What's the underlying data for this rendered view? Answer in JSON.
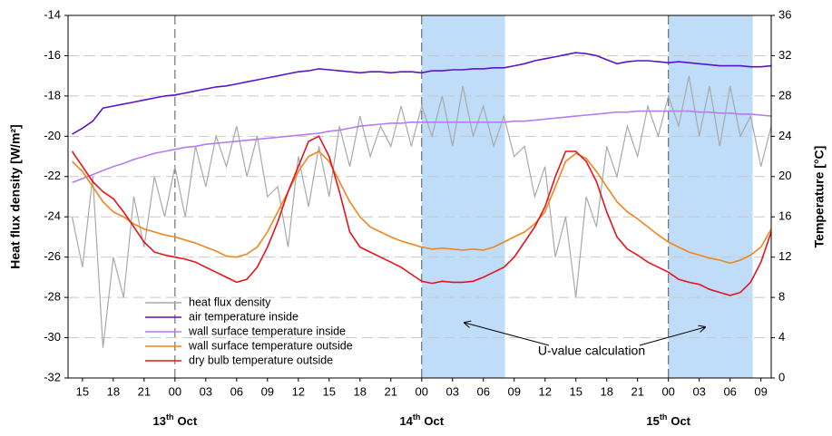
{
  "chart_data": {
    "type": "line",
    "y_label": "Heat flux density [W/m²]",
    "y2_label": "Temperature [°C]",
    "x": [
      14,
      15,
      16,
      17,
      18,
      19,
      20,
      21,
      22,
      23,
      24,
      25,
      26,
      27,
      28,
      29,
      30,
      31,
      32,
      33,
      34,
      35,
      36,
      37,
      38,
      39,
      40,
      41,
      42,
      43,
      44,
      45,
      46,
      47,
      48,
      49,
      50,
      51,
      52,
      53,
      54,
      55,
      56,
      57,
      58,
      59,
      60,
      61,
      62,
      63,
      64,
      65,
      66,
      67,
      68,
      69,
      70,
      71,
      72,
      73,
      74,
      75,
      76,
      77,
      78,
      79,
      80,
      81,
      82
    ],
    "series": [
      {
        "name": "heat flux density",
        "color": "#a9a9a9",
        "axis": "y",
        "values": [
          -24,
          -26.5,
          -22,
          -30.5,
          -26,
          -28,
          -23,
          -25.5,
          -22,
          -24,
          -21.5,
          -24,
          -20.5,
          -22.5,
          -20,
          -21.5,
          -19.5,
          -22,
          -20,
          -23,
          -22.5,
          -25.5,
          -21,
          -23.5,
          -20.5,
          -23,
          -19.5,
          -21.5,
          -19,
          -21,
          -19.5,
          -20.5,
          -18.5,
          -20.5,
          -18.5,
          -20,
          -18,
          -20.5,
          -17.5,
          -20,
          -18.5,
          -20.5,
          -19,
          -21,
          -20.5,
          -23,
          -21.5,
          -26,
          -24,
          -28,
          -23,
          -24.5,
          -20.5,
          -22,
          -19.5,
          -21,
          -18.5,
          -20,
          -18,
          -19.5,
          -17,
          -20,
          -17.5,
          -20.5,
          -17.5,
          -20,
          -19,
          -21.5,
          -19.5
        ]
      },
      {
        "name": "air temperature inside",
        "color": "#5a14c8",
        "axis": "y2",
        "values": [
          24.2,
          24.8,
          25.5,
          26.8,
          27,
          27.2,
          27.4,
          27.6,
          27.8,
          28,
          28.1,
          28.3,
          28.5,
          28.7,
          28.9,
          29,
          29.2,
          29.4,
          29.6,
          29.8,
          30,
          30.2,
          30.4,
          30.5,
          30.7,
          30.6,
          30.5,
          30.4,
          30.3,
          30.4,
          30.4,
          30.3,
          30.4,
          30.4,
          30.3,
          30.5,
          30.5,
          30.6,
          30.6,
          30.7,
          30.7,
          30.8,
          30.8,
          31,
          31.2,
          31.5,
          31.7,
          31.9,
          32.1,
          32.3,
          32.2,
          32,
          31.6,
          31.2,
          31.4,
          31.5,
          31.5,
          31.4,
          31.3,
          31.4,
          31.3,
          31.2,
          31.1,
          31,
          31,
          31,
          30.9,
          30.9,
          31
        ]
      },
      {
        "name": "wall surface temperature inside",
        "color": "#b67cf0",
        "axis": "y2",
        "values": [
          19.4,
          19.8,
          20.2,
          20.6,
          21,
          21.3,
          21.7,
          22,
          22.3,
          22.5,
          22.7,
          22.9,
          23,
          23.2,
          23.3,
          23.4,
          23.5,
          23.6,
          23.7,
          23.8,
          23.9,
          24,
          24.1,
          24.2,
          24.3,
          24.5,
          24.6,
          24.8,
          25,
          25.1,
          25.2,
          25.3,
          25.3,
          25.4,
          25.4,
          25.4,
          25.4,
          25.4,
          25.4,
          25.4,
          25.4,
          25.4,
          25.4,
          25.5,
          25.5,
          25.6,
          25.7,
          25.8,
          25.9,
          26,
          26.1,
          26.2,
          26.3,
          26.4,
          26.4,
          26.5,
          26.5,
          26.5,
          26.5,
          26.5,
          26.5,
          26.4,
          26.4,
          26.3,
          26.3,
          26.2,
          26.2,
          26.1,
          26
        ]
      },
      {
        "name": "wall surface temperature outside",
        "color": "#f0861e",
        "axis": "y2",
        "values": [
          21.5,
          20.5,
          19,
          17.5,
          16.5,
          16,
          15.3,
          14.8,
          14.5,
          14.2,
          14,
          13.7,
          13.4,
          13,
          12.6,
          12.1,
          12,
          12.3,
          13,
          14.5,
          16.5,
          18.5,
          20.5,
          22,
          22.5,
          21.5,
          19.5,
          17.5,
          16,
          15,
          14.5,
          14,
          13.6,
          13.3,
          13,
          12.8,
          12.9,
          12.8,
          12.7,
          12.8,
          12.7,
          13,
          13.5,
          14,
          14.5,
          15.3,
          16.5,
          19,
          21.5,
          22.3,
          21.8,
          20.5,
          19,
          17.5,
          16.5,
          15.8,
          15,
          14.2,
          13.5,
          13,
          12.5,
          12.2,
          11.9,
          11.7,
          11.4,
          11.7,
          12.2,
          13,
          14.8
        ]
      },
      {
        "name": "dry bulb temperature outside",
        "color": "#e5141b",
        "axis": "y2",
        "values": [
          22.5,
          21,
          19.5,
          18.5,
          17.8,
          16.5,
          15,
          13.5,
          12.5,
          12.2,
          12,
          11.8,
          11.5,
          11,
          10.5,
          10,
          9.5,
          9.8,
          11,
          13,
          15.5,
          18.5,
          21,
          23.5,
          24,
          22,
          18.5,
          14.5,
          13,
          12.5,
          12,
          11.5,
          11,
          10.3,
          9.6,
          9.4,
          9.6,
          9.5,
          9.5,
          9.6,
          10,
          10.5,
          11,
          12,
          13.5,
          15,
          17,
          20,
          22.5,
          22.5,
          21.5,
          19.5,
          16.5,
          14,
          12.8,
          12.2,
          11.5,
          11,
          10.5,
          9.8,
          9.5,
          9.3,
          8.8,
          8.5,
          8.2,
          8.5,
          9.5,
          11.5,
          14.5
        ]
      }
    ],
    "xlim": [
      13.6,
      82
    ],
    "xticks": [
      {
        "value": 15,
        "label": "15"
      },
      {
        "value": 18,
        "label": "18"
      },
      {
        "value": 21,
        "label": "21"
      },
      {
        "value": 24,
        "label": "00"
      },
      {
        "value": 27,
        "label": "03"
      },
      {
        "value": 30,
        "label": "06"
      },
      {
        "value": 33,
        "label": "09"
      },
      {
        "value": 36,
        "label": "12"
      },
      {
        "value": 39,
        "label": "15"
      },
      {
        "value": 42,
        "label": "18"
      },
      {
        "value": 45,
        "label": "21"
      },
      {
        "value": 48,
        "label": "00"
      },
      {
        "value": 51,
        "label": "03"
      },
      {
        "value": 54,
        "label": "06"
      },
      {
        "value": 57,
        "label": "09"
      },
      {
        "value": 60,
        "label": "12"
      },
      {
        "value": 63,
        "label": "15"
      },
      {
        "value": 66,
        "label": "18"
      },
      {
        "value": 69,
        "label": "21"
      },
      {
        "value": 72,
        "label": "00"
      },
      {
        "value": 75,
        "label": "03"
      },
      {
        "value": 78,
        "label": "06"
      },
      {
        "value": 81,
        "label": "09"
      }
    ],
    "ylim": [
      -32,
      -14
    ],
    "yticks": [
      -32,
      -30,
      -28,
      -26,
      -24,
      -22,
      -20,
      -18,
      -16,
      -14
    ],
    "y2lim": [
      0,
      36
    ],
    "y2ticks": [
      0,
      4,
      8,
      12,
      16,
      20,
      24,
      28,
      32,
      36
    ],
    "grid": true,
    "day_labels": [
      {
        "x": 24,
        "day": "13",
        "suffix": "th",
        "month": "Oct"
      },
      {
        "x": 48,
        "day": "14",
        "suffix": "th",
        "month": "Oct"
      },
      {
        "x": 72,
        "day": "15",
        "suffix": "th",
        "month": "Oct"
      }
    ],
    "day_lines": [
      24,
      48,
      72
    ],
    "highlight_regions": [
      [
        48,
        56.1
      ],
      [
        72,
        80.2
      ]
    ],
    "highlight_color": "#bfdcf9",
    "annotation": "U-value calculation",
    "legend": "lower left"
  }
}
